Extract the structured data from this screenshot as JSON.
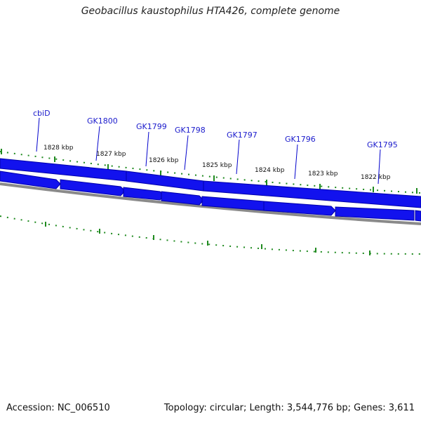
{
  "title": "Geobacillus kaustophilus HTA426, complete genome",
  "footer": {
    "accession": "Accession: NC_006510",
    "topology": "Topology: circular; Length: 3,544,776 bp; Genes: 3,611"
  },
  "colors": {
    "gene_fill": "#1212ee",
    "gene_edge": "#0000aa",
    "gene_label": "#1a1acc",
    "label_line": "#0000cc",
    "ticks": "#1f8a1f",
    "backbone": "#8a8a8a"
  },
  "scale_labels": [
    "1828 kbp",
    "1827 kbp",
    "1826 kbp",
    "1825 kbp",
    "1824 kbp",
    "1823 kbp",
    "1822 kbp"
  ],
  "genes": [
    {
      "name": "cbiD"
    },
    {
      "name": "GK1800"
    },
    {
      "name": "GK1799"
    },
    {
      "name": "GK1798"
    },
    {
      "name": "GK1797"
    },
    {
      "name": "GK1796"
    },
    {
      "name": "GK1795"
    }
  ]
}
